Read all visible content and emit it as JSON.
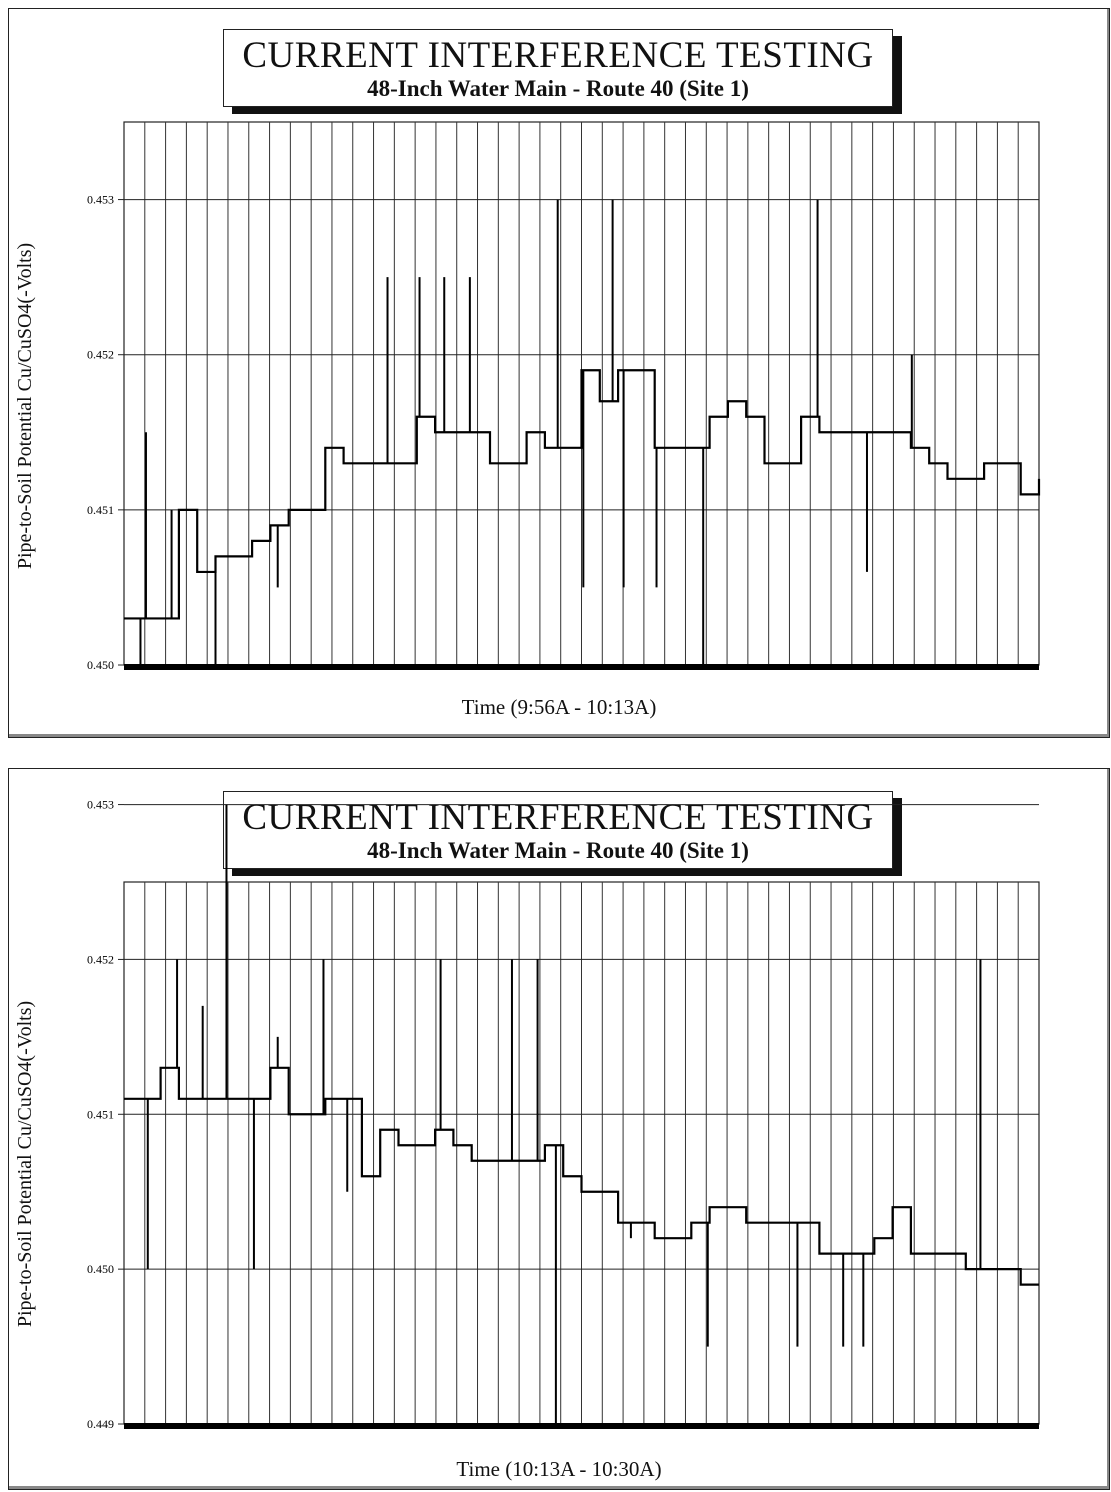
{
  "charts": [
    {
      "title": "CURRENT INTERFERENCE TESTING",
      "subtitle": "48-Inch Water Main - Route 40 (Site 1)",
      "ylabel": "Pipe-to-Soil Potential Cu/CuSO4(-Volts)",
      "xlabel": "Time (9:56A - 10:13A)"
    },
    {
      "title": "CURRENT INTERFERENCE TESTING",
      "subtitle": "48-Inch Water Main - Route 40 (Site 1)",
      "ylabel": "Pipe-to-Soil Potential Cu/CuSO4(-Volts)",
      "xlabel": "Time (10:13A - 10:30A)"
    }
  ],
  "chart_data": [
    {
      "type": "line",
      "title": "CURRENT INTERFERENCE TESTING",
      "subtitle": "48-Inch Water Main - Route 40 (Site 1)",
      "xlabel": "Time (9:56A - 10:13A)",
      "ylabel": "Pipe-to-Soil Potential Cu/CuSO4(-Volts)",
      "ylim": [
        0.45,
        0.4535
      ],
      "yticks": [
        "0.450",
        "0.451",
        "0.452",
        "0.453"
      ],
      "x_tick_labels": false,
      "grid": true,
      "step": true,
      "x": [
        0,
        2,
        4,
        6,
        8,
        10,
        12,
        14,
        16,
        18,
        20,
        22,
        24,
        26,
        28,
        30,
        32,
        34,
        36,
        38,
        40,
        42,
        44,
        46,
        48,
        50,
        52,
        54,
        56,
        58,
        60,
        62,
        64,
        66,
        68,
        70,
        72,
        74,
        76,
        78,
        80,
        82,
        84,
        86,
        88,
        90,
        92,
        94,
        96,
        98,
        100
      ],
      "series": [
        {
          "values": [
            0.4503,
            0.4503,
            0.4503,
            0.451,
            0.4506,
            0.4507,
            0.4507,
            0.4508,
            0.4509,
            0.451,
            0.451,
            0.4514,
            0.4513,
            0.4513,
            0.4513,
            0.4513,
            0.4516,
            0.4515,
            0.4515,
            0.4515,
            0.4513,
            0.4513,
            0.4515,
            0.4514,
            0.4514,
            0.4519,
            0.4517,
            0.4519,
            0.4519,
            0.4514,
            0.4514,
            0.4514,
            0.4516,
            0.4517,
            0.4516,
            0.4513,
            0.4513,
            0.4516,
            0.4515,
            0.4515,
            0.4515,
            0.4515,
            0.4515,
            0.4514,
            0.4513,
            0.4512,
            0.4512,
            0.4513,
            0.4513,
            0.4511,
            0.4512
          ],
          "spikes": [
            [
              1.8,
              0.45
            ],
            [
              2.4,
              0.4515
            ],
            [
              5.2,
              0.451
            ],
            [
              10.0,
              0.45
            ],
            [
              16.8,
              0.4505
            ],
            [
              28.8,
              0.4525
            ],
            [
              32.3,
              0.4525
            ],
            [
              35.0,
              0.4525
            ],
            [
              37.8,
              0.4525
            ],
            [
              47.4,
              0.453
            ],
            [
              50.2,
              0.4505
            ],
            [
              53.4,
              0.453
            ],
            [
              54.6,
              0.4505
            ],
            [
              58.2,
              0.4505
            ],
            [
              63.3,
              0.45
            ],
            [
              75.8,
              0.453
            ],
            [
              81.2,
              0.4506
            ],
            [
              86.1,
              0.452
            ]
          ]
        }
      ]
    },
    {
      "type": "line",
      "title": "CURRENT INTERFERENCE TESTING",
      "subtitle": "48-Inch Water Main - Route 40 (Site 1)",
      "xlabel": "Time (10:13A - 10:30A)",
      "ylabel": "Pipe-to-Soil Potential Cu/CuSO4(-Volts)",
      "ylim": [
        0.449,
        0.4525
      ],
      "yticks": [
        "0.449",
        "0.450",
        "0.451",
        "0.452",
        "0.453"
      ],
      "x_tick_labels": false,
      "grid": true,
      "step": true,
      "x": [
        0,
        2,
        4,
        6,
        8,
        10,
        12,
        14,
        16,
        18,
        20,
        22,
        24,
        26,
        28,
        30,
        32,
        34,
        36,
        38,
        40,
        42,
        44,
        46,
        48,
        50,
        52,
        54,
        56,
        58,
        60,
        62,
        64,
        66,
        68,
        70,
        72,
        74,
        76,
        78,
        80,
        82,
        84,
        86,
        88,
        90,
        92,
        94,
        96,
        98,
        100
      ],
      "series": [
        {
          "values": [
            0.4511,
            0.4511,
            0.4513,
            0.4511,
            0.4511,
            0.4511,
            0.4511,
            0.4511,
            0.4513,
            0.451,
            0.451,
            0.4511,
            0.4511,
            0.4506,
            0.4509,
            0.4508,
            0.4508,
            0.4509,
            0.4508,
            0.4507,
            0.4507,
            0.4507,
            0.4507,
            0.4508,
            0.4506,
            0.4505,
            0.4505,
            0.4503,
            0.4503,
            0.4502,
            0.4502,
            0.4503,
            0.4504,
            0.4504,
            0.4503,
            0.4503,
            0.4503,
            0.4503,
            0.4501,
            0.4501,
            0.4501,
            0.4502,
            0.4504,
            0.4501,
            0.4501,
            0.4501,
            0.45,
            0.45,
            0.45,
            0.4499,
            0.4499
          ],
          "spikes": [
            [
              2.6,
              0.45
            ],
            [
              5.8,
              0.452
            ],
            [
              8.6,
              0.4517
            ],
            [
              11.2,
              0.453
            ],
            [
              14.2,
              0.45
            ],
            [
              16.8,
              0.4515
            ],
            [
              21.8,
              0.452
            ],
            [
              24.4,
              0.4505
            ],
            [
              34.6,
              0.452
            ],
            [
              42.4,
              0.452
            ],
            [
              45.2,
              0.452
            ],
            [
              47.2,
              0.449
            ],
            [
              55.4,
              0.4502
            ],
            [
              58.4,
              0.4502
            ],
            [
              63.8,
              0.4495
            ],
            [
              73.6,
              0.4495
            ],
            [
              78.6,
              0.4495
            ],
            [
              80.8,
              0.4495
            ],
            [
              93.6,
              0.452
            ]
          ]
        }
      ]
    }
  ]
}
